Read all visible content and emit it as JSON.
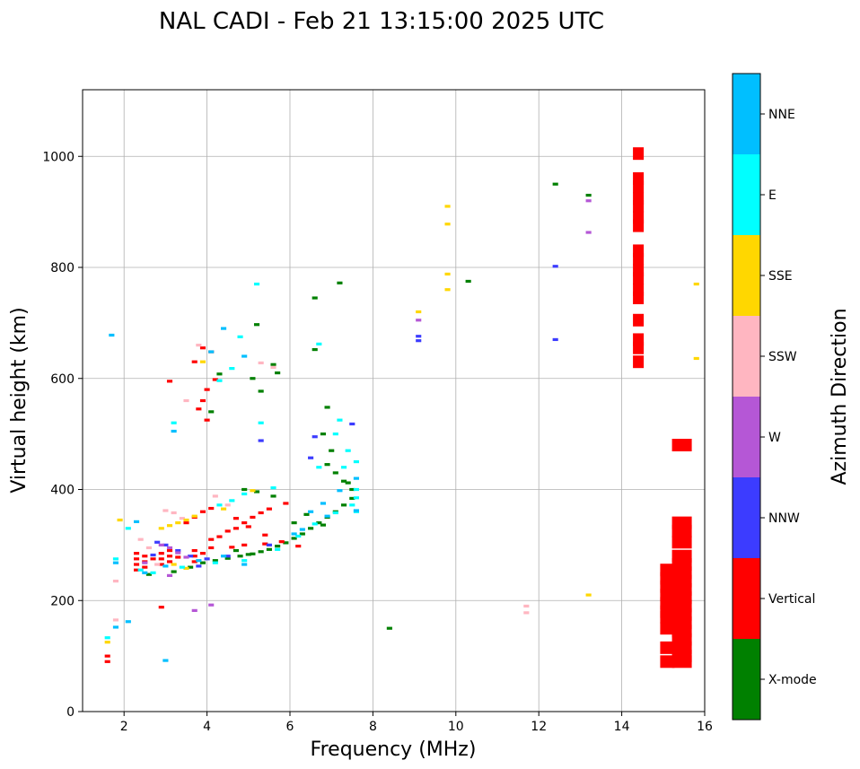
{
  "chart_data": {
    "type": "scatter",
    "title": "NAL CADI - Feb 21 13:15:00 2025 UTC",
    "xlabel": "Frequency (MHz)",
    "ylabel": "Virtual height (km)",
    "xlim": [
      1,
      16
    ],
    "ylim": [
      0,
      1120
    ],
    "xticks": [
      2,
      4,
      6,
      8,
      10,
      12,
      14,
      16
    ],
    "yticks": [
      0,
      200,
      400,
      600,
      800,
      1000
    ],
    "grid": true,
    "colorbar": {
      "label": "Azimuth Direction",
      "position": "right",
      "categories": [
        {
          "name": "X-mode",
          "color": "#008000"
        },
        {
          "name": "Vertical",
          "color": "#ff0000"
        },
        {
          "name": "NNW",
          "color": "#3c3cff"
        },
        {
          "name": "W",
          "color": "#b557d6"
        },
        {
          "name": "SSW",
          "color": "#ffb6c1"
        },
        {
          "name": "SSE",
          "color": "#ffd700"
        },
        {
          "name": "E",
          "color": "#00ffff"
        },
        {
          "name": "NNE",
          "color": "#00bfff"
        }
      ]
    },
    "series": [
      {
        "name": "X-mode",
        "color": "#008000",
        "points": [
          [
            3.6,
            260
          ],
          [
            3.9,
            268
          ],
          [
            4.2,
            272
          ],
          [
            4.5,
            276
          ],
          [
            4.8,
            280
          ],
          [
            5.1,
            284
          ],
          [
            5.3,
            288
          ],
          [
            5.5,
            292
          ],
          [
            5.7,
            298
          ],
          [
            5.9,
            304
          ],
          [
            6.1,
            312
          ],
          [
            6.3,
            320
          ],
          [
            6.5,
            330
          ],
          [
            6.7,
            340
          ],
          [
            6.9,
            350
          ],
          [
            7.1,
            360
          ],
          [
            7.3,
            372
          ],
          [
            7.5,
            384
          ],
          [
            7.5,
            400
          ],
          [
            7.3,
            415
          ],
          [
            7.1,
            430
          ],
          [
            6.9,
            445
          ],
          [
            7.0,
            470
          ],
          [
            6.8,
            500
          ],
          [
            6.9,
            548
          ],
          [
            6.6,
            745
          ],
          [
            7.2,
            772
          ],
          [
            6.6,
            652
          ],
          [
            5.2,
            697
          ],
          [
            5.6,
            625
          ],
          [
            4.3,
            608
          ],
          [
            4.1,
            540
          ],
          [
            5.1,
            600
          ],
          [
            5.3,
            577
          ],
          [
            5.7,
            610
          ],
          [
            4.9,
            400
          ],
          [
            5.6,
            388
          ],
          [
            5.2,
            396
          ],
          [
            6.1,
            340
          ],
          [
            6.4,
            355
          ],
          [
            6.8,
            336
          ],
          [
            7.4,
            412
          ],
          [
            5.0,
            283
          ],
          [
            4.7,
            290
          ],
          [
            3.2,
            252
          ],
          [
            2.6,
            247
          ],
          [
            8.4,
            150
          ],
          [
            10.3,
            775
          ],
          [
            12.4,
            950
          ],
          [
            13.2,
            930
          ],
          [
            14.4,
            960
          ],
          [
            14.4,
            924
          ],
          [
            14.4,
            873
          ],
          [
            14.4,
            755
          ],
          [
            15.4,
            480
          ],
          [
            15.4,
            486
          ]
        ]
      },
      {
        "name": "Vertical",
        "points": [
          [
            1.6,
            100
          ],
          [
            1.6,
            90
          ],
          [
            2.3,
            285
          ],
          [
            2.3,
            275
          ],
          [
            2.3,
            265
          ],
          [
            2.3,
            255
          ],
          [
            2.5,
            280
          ],
          [
            2.5,
            270
          ],
          [
            2.5,
            260
          ],
          [
            2.7,
            275
          ],
          [
            2.9,
            285
          ],
          [
            2.9,
            275
          ],
          [
            2.9,
            265
          ],
          [
            3.1,
            280
          ],
          [
            3.1,
            270
          ],
          [
            3.1,
            290
          ],
          [
            3.3,
            278
          ],
          [
            3.7,
            290
          ],
          [
            3.7,
            280
          ],
          [
            3.7,
            270
          ],
          [
            3.9,
            285
          ],
          [
            4.1,
            295
          ],
          [
            4.1,
            310
          ],
          [
            4.3,
            315
          ],
          [
            4.5,
            325
          ],
          [
            4.7,
            330
          ],
          [
            4.9,
            340
          ],
          [
            5.1,
            350
          ],
          [
            5.3,
            358
          ],
          [
            5.5,
            365
          ],
          [
            5.9,
            375
          ],
          [
            3.7,
            350
          ],
          [
            3.9,
            360
          ],
          [
            4.1,
            366
          ],
          [
            4.7,
            348
          ],
          [
            5.0,
            333
          ],
          [
            5.4,
            318
          ],
          [
            5.8,
            306
          ],
          [
            6.2,
            298
          ],
          [
            4.6,
            296
          ],
          [
            4.9,
            300
          ],
          [
            5.4,
            302
          ],
          [
            3.8,
            545
          ],
          [
            4.0,
            525
          ],
          [
            4.0,
            580
          ],
          [
            4.2,
            598
          ],
          [
            3.9,
            655
          ],
          [
            4.1,
            648
          ],
          [
            3.7,
            630
          ],
          [
            3.1,
            595
          ],
          [
            2.9,
            188
          ],
          [
            3.9,
            560
          ],
          [
            3.5,
            340
          ],
          [
            14.4,
            1005
          ],
          [
            14.4,
            960
          ],
          [
            14.4,
            945
          ],
          [
            14.4,
            924
          ],
          [
            14.4,
            910
          ],
          [
            14.4,
            890
          ],
          [
            14.4,
            875
          ],
          [
            14.4,
            830
          ],
          [
            14.4,
            815
          ],
          [
            14.4,
            795
          ],
          [
            14.4,
            780
          ],
          [
            14.4,
            760
          ],
          [
            14.4,
            745
          ],
          [
            14.4,
            705
          ],
          [
            14.4,
            670
          ],
          [
            14.4,
            655
          ],
          [
            14.4,
            630
          ],
          [
            15.1,
            255
          ],
          [
            15.1,
            240
          ],
          [
            15.1,
            225
          ],
          [
            15.1,
            210
          ],
          [
            15.1,
            195
          ],
          [
            15.1,
            180
          ],
          [
            15.1,
            170
          ],
          [
            15.1,
            150
          ],
          [
            15.1,
            115
          ],
          [
            15.1,
            90
          ],
          [
            15.45,
            280
          ],
          [
            15.45,
            265
          ],
          [
            15.45,
            250
          ],
          [
            15.45,
            235
          ],
          [
            15.45,
            220
          ],
          [
            15.45,
            205
          ],
          [
            15.45,
            190
          ],
          [
            15.45,
            175
          ],
          [
            15.45,
            160
          ],
          [
            15.45,
            145
          ],
          [
            15.45,
            130
          ],
          [
            15.45,
            115
          ],
          [
            15.45,
            100
          ],
          [
            15.45,
            90
          ],
          [
            15.45,
            305
          ],
          [
            15.45,
            325
          ],
          [
            15.45,
            340
          ],
          [
            15.45,
            480
          ]
        ],
        "color": "#ff0000"
      },
      {
        "name": "NNW",
        "color": "#3c3cff",
        "points": [
          [
            2.8,
            305
          ],
          [
            3.0,
            300
          ],
          [
            3.3,
            290
          ],
          [
            3.6,
            280
          ],
          [
            4.0,
            275
          ],
          [
            4.5,
            280
          ],
          [
            5.5,
            300
          ],
          [
            5.3,
            488
          ],
          [
            6.6,
            495
          ],
          [
            6.5,
            457
          ],
          [
            7.5,
            518
          ],
          [
            9.1,
            676
          ],
          [
            9.1,
            668
          ],
          [
            12.4,
            802
          ],
          [
            12.4,
            670
          ],
          [
            2.7,
            282
          ],
          [
            3.8,
            262
          ]
        ]
      },
      {
        "name": "W",
        "color": "#b557d6",
        "points": [
          [
            2.9,
            300
          ],
          [
            3.1,
            295
          ],
          [
            3.3,
            286
          ],
          [
            3.5,
            278
          ],
          [
            3.1,
            245
          ],
          [
            3.7,
            182
          ],
          [
            4.1,
            192
          ],
          [
            9.1,
            705
          ],
          [
            13.2,
            920
          ],
          [
            13.2,
            863
          ],
          [
            2.5,
            268
          ]
        ]
      },
      {
        "name": "SSW",
        "color": "#ffb6c1",
        "points": [
          [
            1.8,
            235
          ],
          [
            1.8,
            165
          ],
          [
            2.4,
            310
          ],
          [
            2.6,
            295
          ],
          [
            3.0,
            362
          ],
          [
            3.2,
            358
          ],
          [
            3.4,
            348
          ],
          [
            4.2,
            388
          ],
          [
            4.5,
            372
          ],
          [
            5.3,
            628
          ],
          [
            5.6,
            620
          ],
          [
            3.5,
            560
          ],
          [
            3.8,
            660
          ],
          [
            11.7,
            190
          ],
          [
            11.7,
            178
          ],
          [
            2.8,
            265
          ]
        ]
      },
      {
        "name": "SSE",
        "color": "#ffd700",
        "points": [
          [
            1.6,
            125
          ],
          [
            1.9,
            345
          ],
          [
            2.9,
            330
          ],
          [
            3.1,
            335
          ],
          [
            3.3,
            340
          ],
          [
            3.5,
            345
          ],
          [
            3.7,
            352
          ],
          [
            3.2,
            265
          ],
          [
            3.5,
            258
          ],
          [
            5.1,
            398
          ],
          [
            9.1,
            720
          ],
          [
            9.8,
            910
          ],
          [
            9.8,
            878
          ],
          [
            9.8,
            788
          ],
          [
            9.8,
            760
          ],
          [
            13.2,
            210
          ],
          [
            15.8,
            770
          ],
          [
            15.8,
            636
          ],
          [
            3.9,
            630
          ],
          [
            4.4,
            365
          ]
        ]
      },
      {
        "name": "E",
        "color": "#00ffff",
        "points": [
          [
            1.6,
            133
          ],
          [
            1.8,
            275
          ],
          [
            2.4,
            255
          ],
          [
            2.7,
            250
          ],
          [
            3.4,
            260
          ],
          [
            4.2,
            268
          ],
          [
            4.9,
            272
          ],
          [
            5.7,
            292
          ],
          [
            6.2,
            316
          ],
          [
            6.6,
            338
          ],
          [
            7.1,
            358
          ],
          [
            7.5,
            372
          ],
          [
            7.6,
            385
          ],
          [
            7.6,
            450
          ],
          [
            7.4,
            470
          ],
          [
            7.1,
            500
          ],
          [
            7.2,
            525
          ],
          [
            6.7,
            440
          ],
          [
            7.3,
            440
          ],
          [
            5.2,
            770
          ],
          [
            5.3,
            520
          ],
          [
            6.7,
            662
          ],
          [
            4.3,
            372
          ],
          [
            4.6,
            380
          ],
          [
            4.9,
            392
          ],
          [
            5.6,
            403
          ],
          [
            3.2,
            520
          ],
          [
            4.3,
            596
          ],
          [
            4.6,
            618
          ],
          [
            4.8,
            675
          ],
          [
            7.6,
            400
          ],
          [
            7.6,
            360
          ],
          [
            2.1,
            330
          ]
        ]
      },
      {
        "name": "NNE",
        "color": "#00bfff",
        "points": [
          [
            1.7,
            678
          ],
          [
            1.8,
            268
          ],
          [
            2.3,
            342
          ],
          [
            2.5,
            250
          ],
          [
            3.0,
            262
          ],
          [
            3.8,
            272
          ],
          [
            4.4,
            280
          ],
          [
            4.9,
            265
          ],
          [
            6.1,
            320
          ],
          [
            6.3,
            328
          ],
          [
            6.9,
            352
          ],
          [
            7.6,
            362
          ],
          [
            7.6,
            420
          ],
          [
            7.2,
            398
          ],
          [
            6.8,
            375
          ],
          [
            4.1,
            648
          ],
          [
            4.4,
            690
          ],
          [
            4.9,
            640
          ],
          [
            3.0,
            92
          ],
          [
            1.8,
            152
          ],
          [
            2.1,
            162
          ],
          [
            3.2,
            505
          ],
          [
            6.5,
            360
          ]
        ]
      }
    ]
  }
}
